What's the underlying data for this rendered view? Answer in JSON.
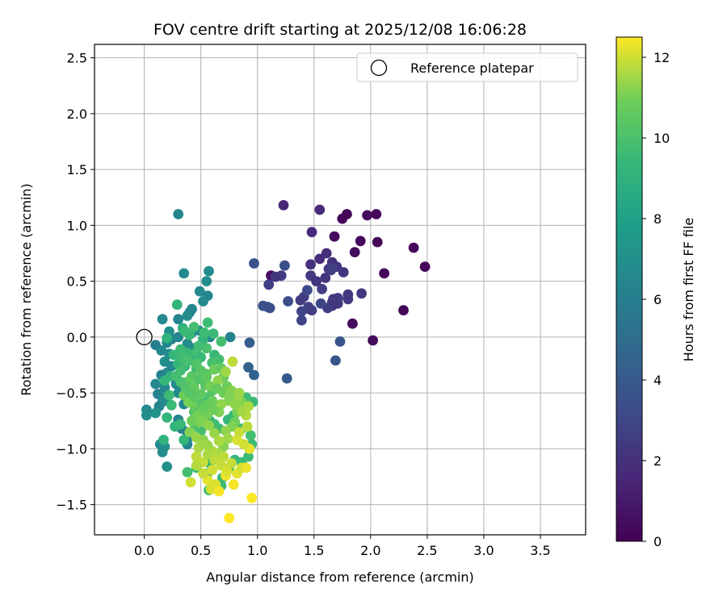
{
  "chart_data": {
    "type": "scatter",
    "title": "FOV centre drift starting at 2025/12/08 16:06:28",
    "xlabel": "Angular distance from reference (arcmin)",
    "ylabel": "Rotation from reference (arcmin)",
    "xlim": [
      -0.44,
      3.9
    ],
    "ylim": [
      -1.77,
      2.62
    ],
    "xticks": [
      0.0,
      0.5,
      1.0,
      1.5,
      2.0,
      2.5,
      3.0,
      3.5
    ],
    "yticks": [
      -1.5,
      -1.0,
      -0.5,
      0.0,
      0.5,
      1.0,
      1.5,
      2.0,
      2.5
    ],
    "xtick_labels": [
      "0.0",
      "0.5",
      "1.0",
      "1.5",
      "2.0",
      "2.5",
      "3.0",
      "3.5"
    ],
    "ytick_labels": [
      "−1.5",
      "−1.0",
      "−0.5",
      "0.0",
      "0.5",
      "1.0",
      "1.5",
      "2.0",
      "2.5"
    ],
    "grid": true,
    "legend": {
      "position": "top-right",
      "entries": [
        {
          "label": "Reference platepar",
          "marker": "open-circle"
        }
      ]
    },
    "reference_point": {
      "x": 0.0,
      "y": 0.0
    },
    "colorbar": {
      "label": "Hours from first FF file",
      "colormap": "viridis",
      "range": [
        0,
        12.5
      ],
      "ticks": [
        0,
        2,
        4,
        6,
        8,
        10,
        12
      ],
      "tick_labels": [
        "0",
        "2",
        "4",
        "6",
        "8",
        "10",
        "12"
      ]
    },
    "points": [
      [
        1.79,
        1.1,
        0.2
      ],
      [
        2.05,
        1.1,
        0.3
      ],
      [
        1.75,
        1.06,
        0.2
      ],
      [
        1.97,
        1.09,
        0.4
      ],
      [
        1.91,
        0.86,
        0.3
      ],
      [
        2.06,
        0.85,
        0.2
      ],
      [
        2.38,
        0.8,
        0.2
      ],
      [
        2.48,
        0.63,
        0.3
      ],
      [
        2.12,
        0.57,
        0.3
      ],
      [
        1.86,
        0.76,
        0.5
      ],
      [
        1.68,
        0.9,
        0.4
      ],
      [
        2.29,
        0.24,
        0.2
      ],
      [
        2.02,
        -0.03,
        0.4
      ],
      [
        1.84,
        0.12,
        0.4
      ],
      [
        1.12,
        0.55,
        0.5
      ],
      [
        1.23,
        1.18,
        1.6
      ],
      [
        1.55,
        1.14,
        1.7
      ],
      [
        1.48,
        0.94,
        1.8
      ],
      [
        1.61,
        0.75,
        1.9
      ],
      [
        1.55,
        0.7,
        1.8
      ],
      [
        1.47,
        0.65,
        2.0
      ],
      [
        1.7,
        0.63,
        2.1
      ],
      [
        1.76,
        0.58,
        2.2
      ],
      [
        1.66,
        0.67,
        2.0
      ],
      [
        1.63,
        0.61,
        2.2
      ],
      [
        1.92,
        0.39,
        2.3
      ],
      [
        1.8,
        0.38,
        2.3
      ],
      [
        1.8,
        0.34,
        2.4
      ],
      [
        1.71,
        0.35,
        2.6
      ],
      [
        1.67,
        0.34,
        2.1
      ],
      [
        1.57,
        0.43,
        2.6
      ],
      [
        1.66,
        0.31,
        2.5
      ],
      [
        1.71,
        0.3,
        2.4
      ],
      [
        1.66,
        0.28,
        2.3
      ],
      [
        1.62,
        0.26,
        2.5
      ],
      [
        1.56,
        0.3,
        3.0
      ],
      [
        1.46,
        0.25,
        3.0
      ],
      [
        1.45,
        0.27,
        2.8
      ],
      [
        1.41,
        0.36,
        2.6
      ],
      [
        1.39,
        0.23,
        3.0
      ],
      [
        1.47,
        0.55,
        2.4
      ],
      [
        1.38,
        0.33,
        2.5
      ],
      [
        1.39,
        0.15,
        2.9
      ],
      [
        1.27,
        0.32,
        3.5
      ],
      [
        1.21,
        0.55,
        2.5
      ],
      [
        1.16,
        0.54,
        2.2
      ],
      [
        1.1,
        0.47,
        2.6
      ],
      [
        1.11,
        0.26,
        3.4
      ],
      [
        1.09,
        0.27,
        3.5
      ],
      [
        1.05,
        0.28,
        3.5
      ],
      [
        1.24,
        0.64,
        3.4
      ],
      [
        1.66,
        0.62,
        2.7
      ],
      [
        1.65,
        0.6,
        2.6
      ],
      [
        1.52,
        0.5,
        2.2
      ],
      [
        0.97,
        0.66,
        3.6
      ],
      [
        1.73,
        -0.04,
        3.7
      ],
      [
        1.69,
        -0.21,
        3.8
      ],
      [
        1.26,
        -0.37,
        4.0
      ],
      [
        0.93,
        -0.05,
        4.2
      ],
      [
        0.97,
        -0.34,
        4.5
      ],
      [
        0.92,
        -0.27,
        4.4
      ],
      [
        1.48,
        0.24,
        2.6
      ],
      [
        1.44,
        0.42,
        3.2
      ],
      [
        1.6,
        0.53,
        2.2
      ],
      [
        0.3,
        1.1,
        6.6
      ],
      [
        0.57,
        0.59,
        6.8
      ],
      [
        0.35,
        0.57,
        6.7
      ],
      [
        0.55,
        0.5,
        6.9
      ],
      [
        0.49,
        0.41,
        6.6
      ],
      [
        0.56,
        0.37,
        6.4
      ],
      [
        0.52,
        0.32,
        6.8
      ],
      [
        0.42,
        0.25,
        6.5
      ],
      [
        0.4,
        0.22,
        6.3
      ],
      [
        0.38,
        0.19,
        6.8
      ],
      [
        0.3,
        0.16,
        6.4
      ],
      [
        0.16,
        0.16,
        6.7
      ],
      [
        0.22,
        0.05,
        7.1
      ],
      [
        0.2,
        -0.05,
        6.5
      ],
      [
        0.1,
        -0.07,
        6.0
      ],
      [
        0.15,
        -0.12,
        6.6
      ],
      [
        0.22,
        -0.15,
        6.8
      ],
      [
        0.18,
        -0.22,
        7.0
      ],
      [
        0.24,
        -0.26,
        6.7
      ],
      [
        0.2,
        -0.32,
        6.4
      ],
      [
        0.15,
        -0.34,
        6.2
      ],
      [
        0.1,
        -0.42,
        6.6
      ],
      [
        0.18,
        -0.45,
        6.5
      ],
      [
        0.12,
        -0.51,
        6.3
      ],
      [
        0.2,
        -0.53,
        7.0
      ],
      [
        0.16,
        -0.58,
        6.8
      ],
      [
        0.13,
        -0.62,
        6.4
      ],
      [
        0.02,
        -0.65,
        6.7
      ],
      [
        0.02,
        -0.7,
        6.9
      ],
      [
        0.1,
        -0.68,
        7.2
      ],
      [
        0.35,
        -0.6,
        6.5
      ],
      [
        0.3,
        -0.74,
        6.4
      ],
      [
        0.33,
        -0.82,
        6.2
      ],
      [
        0.38,
        -0.85,
        6.0
      ],
      [
        0.4,
        -0.89,
        6.3
      ],
      [
        0.38,
        -0.96,
        6.5
      ],
      [
        0.14,
        -0.96,
        6.6
      ],
      [
        0.18,
        -0.98,
        7.0
      ],
      [
        0.2,
        -1.16,
        7.1
      ],
      [
        0.16,
        -1.03,
        6.8
      ],
      [
        0.24,
        -0.02,
        6.3
      ],
      [
        0.3,
        0.0,
        6.5
      ],
      [
        0.38,
        -0.06,
        6.8
      ],
      [
        0.44,
        -0.1,
        6.7
      ],
      [
        0.42,
        0.04,
        7.0
      ],
      [
        0.48,
        0.06,
        6.8
      ],
      [
        0.58,
        0.0,
        6.5
      ],
      [
        0.76,
        0.0,
        6.2
      ],
      [
        0.28,
        -0.42,
        6.6
      ],
      [
        0.34,
        -0.46,
        6.9
      ],
      [
        0.3,
        -0.5,
        6.8
      ],
      [
        0.29,
        0.29,
        9.2
      ],
      [
        0.34,
        0.08,
        9.0
      ],
      [
        0.4,
        0.02,
        9.4
      ],
      [
        0.52,
        -0.02,
        9.2
      ],
      [
        0.56,
        0.13,
        9.6
      ],
      [
        0.61,
        0.03,
        9.5
      ],
      [
        0.68,
        -0.04,
        9.8
      ],
      [
        0.55,
        -0.1,
        10.0
      ],
      [
        0.46,
        -0.14,
        9.8
      ],
      [
        0.5,
        -0.18,
        9.5
      ],
      [
        0.62,
        -0.16,
        9.4
      ],
      [
        0.66,
        -0.2,
        9.8
      ],
      [
        0.6,
        -0.23,
        9.9
      ],
      [
        0.46,
        -0.28,
        9.6
      ],
      [
        0.42,
        -0.21,
        9.2
      ],
      [
        0.38,
        -0.14,
        9.5
      ],
      [
        0.32,
        -0.11,
        9.6
      ],
      [
        0.2,
        -0.01,
        9.0
      ],
      [
        0.26,
        -0.16,
        9.4
      ],
      [
        0.3,
        -0.24,
        9.3
      ],
      [
        0.36,
        -0.26,
        9.6
      ],
      [
        0.32,
        -0.3,
        9.7
      ],
      [
        0.23,
        -0.35,
        9.1
      ],
      [
        0.18,
        -0.39,
        9.3
      ],
      [
        0.22,
        -0.52,
        9.6
      ],
      [
        0.24,
        -0.61,
        9.5
      ],
      [
        0.2,
        -0.72,
        9.2
      ],
      [
        0.27,
        -0.8,
        9.2
      ],
      [
        0.32,
        -0.78,
        9.5
      ],
      [
        0.35,
        -0.92,
        9.3
      ],
      [
        0.17,
        -0.92,
        9.1
      ],
      [
        0.38,
        -1.21,
        9.8
      ],
      [
        0.46,
        -1.17,
        9.5
      ],
      [
        0.58,
        -1.13,
        9.4
      ],
      [
        0.56,
        -1.22,
        9.6
      ],
      [
        0.57,
        -1.37,
        9.8
      ],
      [
        0.68,
        -1.33,
        9.5
      ],
      [
        0.69,
        -1.26,
        9.4
      ],
      [
        0.75,
        -1.18,
        9.6
      ],
      [
        0.8,
        -1.1,
        9.4
      ],
      [
        0.86,
        -1.12,
        9.5
      ],
      [
        0.92,
        -1.07,
        9.5
      ],
      [
        0.95,
        -0.96,
        9.6
      ],
      [
        0.94,
        -0.88,
        9.8
      ],
      [
        0.86,
        -0.82,
        9.5
      ],
      [
        0.96,
        -0.58,
        9.5
      ],
      [
        0.9,
        -0.54,
        9.6
      ],
      [
        0.83,
        -0.62,
        9.4
      ],
      [
        0.79,
        -0.7,
        9.3
      ],
      [
        0.74,
        -0.74,
        9.4
      ],
      [
        0.66,
        -0.82,
        9.5
      ],
      [
        0.62,
        -0.78,
        9.7
      ],
      [
        0.58,
        -0.75,
        9.6
      ],
      [
        0.5,
        -0.84,
        9.8
      ],
      [
        0.45,
        -0.8,
        10.0
      ],
      [
        0.44,
        -0.67,
        10.2
      ],
      [
        0.48,
        -0.61,
        10.1
      ],
      [
        0.52,
        -0.58,
        10.0
      ],
      [
        0.56,
        -0.54,
        9.9
      ],
      [
        0.6,
        -0.48,
        10.1
      ],
      [
        0.54,
        -0.43,
        10.3
      ],
      [
        0.47,
        -0.38,
        10.2
      ],
      [
        0.42,
        -0.35,
        10.4
      ],
      [
        0.38,
        -0.4,
        10.5
      ],
      [
        0.55,
        -0.33,
        10.4
      ],
      [
        0.62,
        -0.29,
        10.8
      ],
      [
        0.68,
        -0.28,
        10.6
      ],
      [
        0.7,
        -0.36,
        10.8
      ],
      [
        0.73,
        -0.44,
        10.9
      ],
      [
        0.77,
        -0.48,
        11.2
      ],
      [
        0.84,
        -0.5,
        11.4
      ],
      [
        0.86,
        -0.58,
        11.1
      ],
      [
        0.88,
        -0.63,
        11.2
      ],
      [
        0.82,
        -0.67,
        11.0
      ],
      [
        0.8,
        -0.76,
        10.9
      ],
      [
        0.78,
        -0.8,
        11.1
      ],
      [
        0.72,
        -0.84,
        11.3
      ],
      [
        0.74,
        -0.91,
        11.5
      ],
      [
        0.7,
        -0.98,
        11.2
      ],
      [
        0.66,
        -1.04,
        11.5
      ],
      [
        0.6,
        -1.02,
        11.7
      ],
      [
        0.56,
        -0.97,
        11.4
      ],
      [
        0.52,
        -0.92,
        11.2
      ],
      [
        0.48,
        -0.99,
        11.6
      ],
      [
        0.46,
        -1.07,
        11.8
      ],
      [
        0.52,
        -1.12,
        11.9
      ],
      [
        0.6,
        -1.19,
        12.0
      ],
      [
        0.56,
        -1.28,
        12.2
      ],
      [
        0.63,
        -1.32,
        12.1
      ],
      [
        0.72,
        -1.24,
        12.3
      ],
      [
        0.79,
        -1.32,
        12.4
      ],
      [
        0.82,
        -1.22,
        12.2
      ],
      [
        0.86,
        -1.17,
        12.0
      ],
      [
        0.77,
        -1.13,
        11.9
      ],
      [
        0.7,
        -1.07,
        11.8
      ],
      [
        0.66,
        -0.93,
        11.6
      ],
      [
        0.62,
        -0.86,
        11.4
      ],
      [
        0.57,
        -0.79,
        11.3
      ],
      [
        0.53,
        -0.71,
        11.2
      ],
      [
        0.47,
        -0.7,
        11.0
      ],
      [
        0.43,
        -0.6,
        10.8
      ],
      [
        0.39,
        -0.58,
        11.0
      ],
      [
        0.35,
        -0.52,
        10.9
      ],
      [
        0.38,
        -0.47,
        10.7
      ],
      [
        0.44,
        -0.45,
        10.6
      ],
      [
        0.5,
        -0.51,
        10.5
      ],
      [
        0.58,
        -0.44,
        11.0
      ],
      [
        0.65,
        -0.39,
        11.3
      ],
      [
        0.72,
        -0.31,
        11.5
      ],
      [
        0.78,
        -0.22,
        11.8
      ],
      [
        0.95,
        -1.44,
        12.5
      ],
      [
        0.75,
        -1.62,
        12.5
      ],
      [
        0.52,
        -1.22,
        11.9
      ],
      [
        0.46,
        -1.15,
        11.7
      ],
      [
        0.41,
        -1.3,
        12.0
      ],
      [
        0.59,
        -1.36,
        12.1
      ],
      [
        0.66,
        -1.38,
        12.4
      ],
      [
        0.9,
        -1.17,
        12.3
      ],
      [
        0.93,
        -1.0,
        12.2
      ],
      [
        0.88,
        -0.96,
        12.0
      ],
      [
        0.82,
        -0.92,
        12.1
      ],
      [
        0.84,
        -0.85,
        11.9
      ],
      [
        0.91,
        -0.8,
        11.8
      ],
      [
        0.9,
        -0.7,
        11.7
      ],
      [
        0.86,
        -0.66,
        11.5
      ],
      [
        0.92,
        -0.62,
        11.6
      ],
      [
        0.82,
        -0.55,
        11.4
      ],
      [
        0.75,
        -0.57,
        11.2
      ],
      [
        0.68,
        -0.6,
        11.3
      ],
      [
        0.66,
        -0.67,
        11.1
      ],
      [
        0.61,
        -0.65,
        10.9
      ],
      [
        0.56,
        -0.69,
        11.0
      ],
      [
        0.52,
        -0.64,
        10.8
      ],
      [
        0.49,
        -0.76,
        11.1
      ],
      [
        0.42,
        -0.75,
        10.9
      ],
      [
        0.4,
        -0.85,
        11.2
      ],
      [
        0.46,
        -0.9,
        11.4
      ],
      [
        0.52,
        -0.96,
        11.5
      ],
      [
        0.56,
        -1.05,
        11.6
      ],
      [
        0.62,
        -1.1,
        11.8
      ],
      [
        0.68,
        -1.15,
        11.9
      ],
      [
        0.73,
        -1.2,
        12.1
      ],
      [
        0.64,
        -0.46,
        10.7
      ],
      [
        0.7,
        -0.5,
        10.9
      ],
      [
        0.75,
        -0.53,
        11.1
      ],
      [
        0.8,
        -0.6,
        11.3
      ],
      [
        0.6,
        -0.57,
        10.8
      ],
      [
        0.54,
        -0.61,
        10.6
      ],
      [
        0.44,
        -0.53,
        10.4
      ],
      [
        0.4,
        -0.5,
        10.3
      ],
      [
        0.36,
        -0.44,
        10.2
      ],
      [
        0.32,
        -0.4,
        10.0
      ],
      [
        0.28,
        -0.35,
        9.8
      ],
      [
        0.33,
        -0.18,
        9.7
      ],
      [
        0.38,
        -0.21,
        9.9
      ],
      [
        0.46,
        -0.24,
        10.1
      ],
      [
        0.5,
        -0.3,
        10.3
      ],
      [
        0.55,
        -0.36,
        10.5
      ],
      [
        0.48,
        -0.08,
        9.7
      ],
      [
        0.53,
        0.04,
        9.6
      ],
      [
        0.44,
        0.09,
        9.8
      ],
      [
        0.36,
        0.05,
        9.5
      ]
    ]
  }
}
